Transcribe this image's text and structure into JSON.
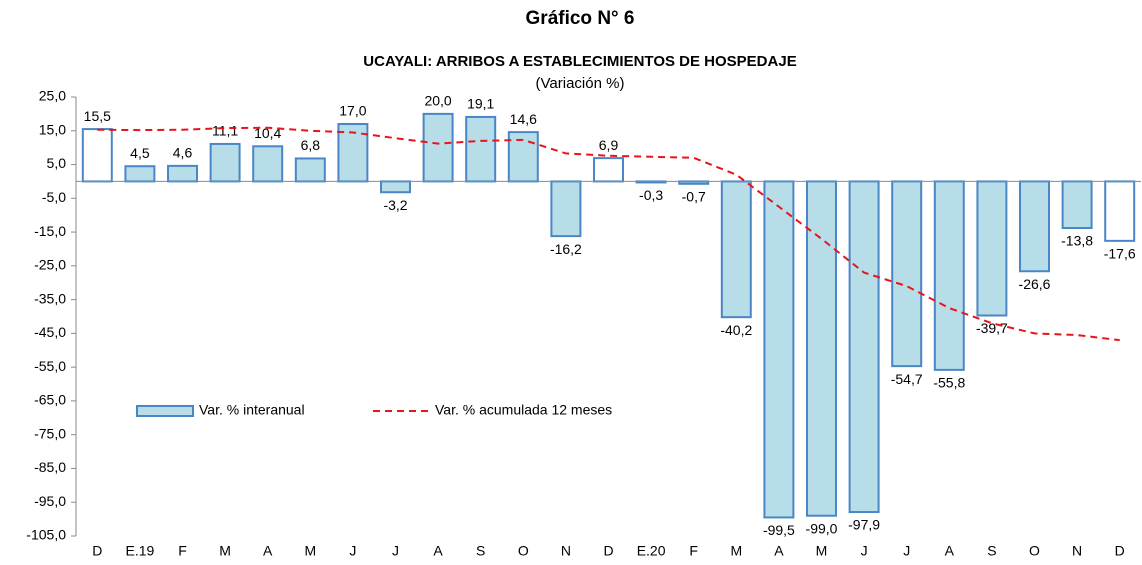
{
  "chart_data": {
    "type": "bar",
    "title": "Gráfico N° 6",
    "subtitle": "UCAYALI: ARRIBOS A ESTABLECIMIENTOS DE HOSPEDAJE",
    "unit_note": "(Variación %)",
    "categories": [
      "D",
      "E.19",
      "F",
      "M",
      "A",
      "M",
      "J",
      "J",
      "A",
      "S",
      "O",
      "N",
      "D",
      "E.20",
      "F",
      "M",
      "A",
      "M",
      "J",
      "J",
      "A",
      "S",
      "O",
      "N",
      "D"
    ],
    "series": [
      {
        "name": "Var. % interanual",
        "type": "bar",
        "color": "#b7dde8",
        "edge_color": "#4a86c5",
        "colors": [
          "#ffffff",
          "#b7dde8",
          "#b7dde8",
          "#b7dde8",
          "#b7dde8",
          "#b7dde8",
          "#b7dde8",
          "#b7dde8",
          "#b7dde8",
          "#b7dde8",
          "#b7dde8",
          "#b7dde8",
          "#ffffff",
          "#b7dde8",
          "#b7dde8",
          "#b7dde8",
          "#b7dde8",
          "#b7dde8",
          "#b7dde8",
          "#b7dde8",
          "#b7dde8",
          "#b7dde8",
          "#b7dde8",
          "#b7dde8",
          "#ffffff"
        ],
        "values": [
          15.5,
          4.5,
          4.6,
          11.1,
          10.4,
          6.8,
          17.0,
          -3.2,
          20.0,
          19.1,
          14.6,
          -16.2,
          6.9,
          -0.3,
          -0.7,
          -40.2,
          -99.5,
          -99.0,
          -97.9,
          -54.7,
          -55.8,
          -39.7,
          -26.6,
          -13.8,
          -17.6
        ],
        "value_labels": [
          "15,5",
          "4,5",
          "4,6",
          "11,1",
          "10,4",
          "6,8",
          "17,0",
          "-3,2",
          "20,0",
          "19,1",
          "14,6",
          "-16,2",
          "6,9",
          "-0,3",
          "-0,7",
          "-40,2",
          "-99,5",
          "-99,0",
          "-97,9",
          "-54,7",
          "-55,8",
          "-39,7",
          "-26,6",
          "-13,8",
          "-17,6"
        ]
      },
      {
        "name": "Var. % acumulada 12 meses",
        "type": "line",
        "color": "#e8141b",
        "values": [
          15.3,
          15.2,
          15.3,
          15.8,
          15.9,
          15.0,
          14.5,
          12.8,
          11.2,
          12.0,
          12.3,
          8.3,
          7.6,
          7.3,
          7.0,
          2.0,
          -7.5,
          -17.0,
          -27.0,
          -31.0,
          -37.5,
          -42.0,
          -45.0,
          -45.5,
          -47.0
        ]
      }
    ],
    "ylim": [
      -105,
      25
    ],
    "yticks": [
      {
        "value": 25,
        "label": "25,0"
      },
      {
        "value": 15,
        "label": "15,0"
      },
      {
        "value": 5,
        "label": "5,0"
      },
      {
        "value": -5,
        "label": "-5,0"
      },
      {
        "value": -15,
        "label": "-15,0"
      },
      {
        "value": -25,
        "label": "-25,0"
      },
      {
        "value": -35,
        "label": "-35,0"
      },
      {
        "value": -45,
        "label": "-45,0"
      },
      {
        "value": -55,
        "label": "-55,0"
      },
      {
        "value": -65,
        "label": "-65,0"
      },
      {
        "value": -75,
        "label": "-75,0"
      },
      {
        "value": -85,
        "label": "-85,0"
      },
      {
        "value": -95,
        "label": "-95,0"
      },
      {
        "value": -105,
        "label": "-105,0"
      }
    ],
    "grid": false,
    "legend": "lower left"
  }
}
